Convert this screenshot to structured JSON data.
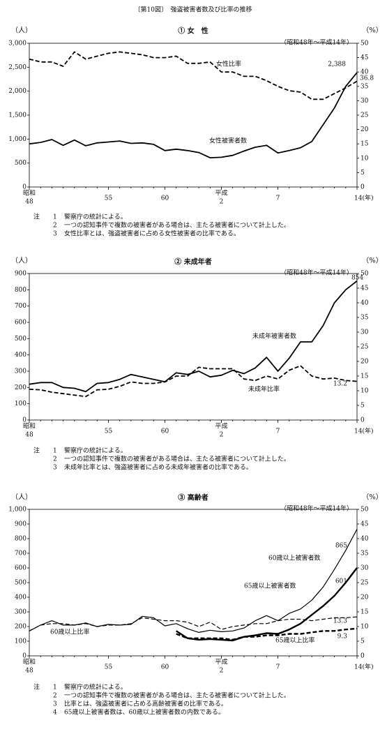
{
  "title": "〔第10図〕　強盗被害者数及び比率の推移",
  "chart_data": [
    {
      "type": "line",
      "title": "① 女　性",
      "period": "（昭和48年～平成14年）",
      "y_unit": "（人）",
      "y2_unit": "（%）",
      "categories": [
        "48",
        null,
        null,
        null,
        null,
        null,
        null,
        "55",
        null,
        null,
        null,
        null,
        "60",
        null,
        null,
        null,
        null,
        "2",
        null,
        null,
        null,
        null,
        "7",
        null,
        null,
        null,
        null,
        null,
        null,
        "14(年)"
      ],
      "eras": [
        "昭和",
        null,
        null,
        null,
        null,
        null,
        null,
        null,
        null,
        null,
        null,
        null,
        null,
        null,
        null,
        null,
        null,
        "平成",
        null,
        null,
        null,
        null,
        null,
        null,
        null,
        null,
        null,
        null,
        null,
        null
      ],
      "ylim": [
        0,
        3000
      ],
      "yticks": [
        0,
        500,
        {
          "value": 1000,
          "label": "1,000"
        },
        {
          "value": 1500,
          "label": "1,500"
        },
        {
          "value": 2000,
          "label": "2,000"
        },
        {
          "value": 2500,
          "label": "2,500"
        },
        {
          "value": 3000,
          "label": "3,000"
        }
      ],
      "y2lim": [
        0,
        50
      ],
      "y2ticks": [
        0,
        5,
        10,
        15,
        20,
        25,
        30,
        35,
        40,
        45,
        50
      ],
      "series": [
        {
          "name": "女性被害者数",
          "color": "#000000",
          "style": "solid",
          "linewidth": 1.8,
          "label_last": true,
          "values": [
            900,
            930,
            990,
            870,
            980,
            860,
            920,
            940,
            960,
            910,
            920,
            890,
            760,
            790,
            760,
            720,
            610,
            620,
            660,
            750,
            830,
            870,
            710,
            760,
            820,
            950,
            1300,
            1650,
            2100,
            2388
          ],
          "value_labels": [
            null,
            null,
            null,
            null,
            null,
            null,
            null,
            null,
            null,
            null,
            null,
            null,
            null,
            null,
            null,
            null,
            null,
            null,
            null,
            null,
            null,
            null,
            null,
            null,
            null,
            null,
            null,
            null,
            null,
            "2,388"
          ]
        },
        {
          "name": "女性比率",
          "color": "#000000",
          "style": "dashed",
          "linewidth": 1.8,
          "axis": "y2",
          "label_last": true,
          "values": [
            44.5,
            43.5,
            43.5,
            42,
            47,
            44.5,
            45.5,
            46.5,
            47,
            46.5,
            46,
            45,
            45,
            45.5,
            43,
            43,
            43.5,
            40,
            40,
            38.5,
            38.5,
            37,
            35,
            33.5,
            33,
            30.5,
            30.5,
            32.5,
            34.5,
            36.8
          ]
        }
      ],
      "note_heading": "注",
      "notes": [
        {
          "num": "1",
          "text": "警察庁の統計による。"
        },
        {
          "num": "2",
          "text": "一つの認知事件で複数の被害者がある場合は、主たる被害者について計上した。"
        },
        {
          "num": "3",
          "text": "女性比率とは、強盗被害者に占める女性被害者の比率である。"
        }
      ]
    },
    {
      "type": "line",
      "title": "② 未成年者",
      "period": "（昭和48年～平成14年）",
      "y_unit": "（人）",
      "y2_unit": "（%）",
      "categories": [
        "48",
        null,
        null,
        null,
        null,
        null,
        null,
        "55",
        null,
        null,
        null,
        null,
        "60",
        null,
        null,
        null,
        null,
        "2",
        null,
        null,
        null,
        null,
        "7",
        null,
        null,
        null,
        null,
        null,
        null,
        "14(年)"
      ],
      "eras": [
        "昭和",
        null,
        null,
        null,
        null,
        null,
        null,
        null,
        null,
        null,
        null,
        null,
        null,
        null,
        null,
        null,
        null,
        "平成",
        null,
        null,
        null,
        null,
        null,
        null,
        null,
        null,
        null,
        null,
        null,
        null
      ],
      "ylim": [
        0,
        900
      ],
      "yticks": [
        0,
        100,
        200,
        300,
        400,
        500,
        600,
        700,
        800,
        900
      ],
      "y2lim": [
        0,
        50
      ],
      "y2ticks": [
        0,
        5,
        10,
        15,
        20,
        25,
        30,
        35,
        40,
        45,
        50
      ],
      "series": [
        {
          "name": "未成年被害者数",
          "color": "#000000",
          "style": "solid",
          "linewidth": 1.8,
          "label_last": true,
          "values": [
            220,
            230,
            230,
            200,
            195,
            175,
            225,
            230,
            250,
            280,
            265,
            250,
            235,
            290,
            280,
            300,
            265,
            275,
            305,
            285,
            320,
            385,
            300,
            380,
            480,
            480,
            580,
            720,
            800,
            854
          ]
        },
        {
          "name": "未成年比率",
          "color": "#000000",
          "style": "dashed",
          "linewidth": 1.8,
          "axis": "y2",
          "label_last": true,
          "values": [
            10.5,
            10.3,
            9.5,
            9,
            8.5,
            8,
            10.3,
            10.5,
            11.5,
            13,
            12.5,
            12.5,
            13,
            15,
            15,
            18,
            17.5,
            17.5,
            17.5,
            14,
            13.5,
            15,
            14,
            17,
            18.5,
            15,
            14,
            14.3,
            13.5,
            13.2
          ]
        }
      ],
      "note_heading": "注",
      "notes": [
        {
          "num": "1",
          "text": "警察庁の統計による。"
        },
        {
          "num": "2",
          "text": "一つの認知事件で複数の被害者がある場合は、主たる被害者について計上した。"
        },
        {
          "num": "3",
          "text": "未成年比率とは、強盗被害者に占める未成年被害者の比率である。"
        }
      ]
    },
    {
      "type": "line",
      "title": "③ 高齢者",
      "period": "（昭和48年～平成14年）",
      "y_unit": "（人）",
      "y2_unit": "（%）",
      "categories": [
        "48",
        null,
        null,
        null,
        null,
        null,
        null,
        "55",
        null,
        null,
        null,
        null,
        "60",
        null,
        null,
        null,
        null,
        "2",
        null,
        null,
        null,
        null,
        "7",
        null,
        null,
        null,
        null,
        null,
        null,
        "14(年)"
      ],
      "eras": [
        "昭和",
        null,
        null,
        null,
        null,
        null,
        null,
        null,
        null,
        null,
        null,
        null,
        null,
        null,
        null,
        null,
        null,
        "平成",
        null,
        null,
        null,
        null,
        null,
        null,
        null,
        null,
        null,
        null,
        null,
        null
      ],
      "ylim": [
        0,
        1000
      ],
      "yticks": [
        0,
        100,
        200,
        300,
        400,
        500,
        600,
        700,
        800,
        900,
        {
          "value": 1000,
          "label": "1,000"
        }
      ],
      "y2lim": [
        0,
        50
      ],
      "y2ticks": [
        0,
        5,
        10,
        15,
        20,
        25,
        30,
        35,
        40,
        45,
        50
      ],
      "series": [
        {
          "name": "60歳以上被害者数",
          "color": "#000000",
          "style": "solid",
          "linewidth": 1.2,
          "label_last": true,
          "values": [
            170,
            210,
            240,
            210,
            210,
            225,
            200,
            215,
            210,
            215,
            270,
            260,
            205,
            220,
            185,
            160,
            175,
            165,
            170,
            190,
            240,
            275,
            240,
            290,
            320,
            380,
            470,
            590,
            720,
            865
          ]
        },
        {
          "name": "65歳以上被害者数",
          "color": "#000000",
          "style": "solid",
          "linewidth": 2.4,
          "label_last": true,
          "values": [
            null,
            null,
            null,
            null,
            null,
            null,
            null,
            null,
            null,
            null,
            null,
            null,
            null,
            170,
            120,
            110,
            115,
            110,
            105,
            130,
            140,
            155,
            150,
            180,
            220,
            280,
            340,
            410,
            500,
            601
          ]
        },
        {
          "name": "60歳以上比率",
          "color": "#000000",
          "style": "dashed",
          "linewidth": 1.2,
          "axis": "y2",
          "label_last": true,
          "values": [
            8.5,
            10.5,
            11,
            11,
            10.5,
            11,
            10,
            10.5,
            10.5,
            11,
            13,
            12.5,
            12,
            12,
            11.5,
            10,
            11.5,
            9,
            10,
            10.5,
            11,
            11,
            12,
            12.5,
            12.5,
            12,
            12.5,
            13,
            13,
            13.3
          ]
        },
        {
          "name": "65歳以上比率",
          "color": "#000000",
          "style": "dashed",
          "linewidth": 2.4,
          "axis": "y2",
          "label_last": true,
          "values": [
            null,
            null,
            null,
            null,
            null,
            null,
            null,
            null,
            null,
            null,
            null,
            null,
            null,
            7.5,
            6,
            6,
            6,
            6,
            5.5,
            6.5,
            6.5,
            7,
            7,
            7.5,
            7.5,
            8,
            8.5,
            8.5,
            9,
            9.3
          ]
        }
      ],
      "note_heading": "注",
      "notes": [
        {
          "num": "1",
          "text": "警察庁の統計による。"
        },
        {
          "num": "2",
          "text": "一つの認知事件で複数の被害者がある場合は、主たる被害者について計上した。"
        },
        {
          "num": "3",
          "text": "比率とは、強盗被害者に占める高齢被害者の比率である。"
        },
        {
          "num": "4",
          "text": "65歳以上被害者数は、60歳以上被害者数の内数である。"
        }
      ]
    }
  ]
}
